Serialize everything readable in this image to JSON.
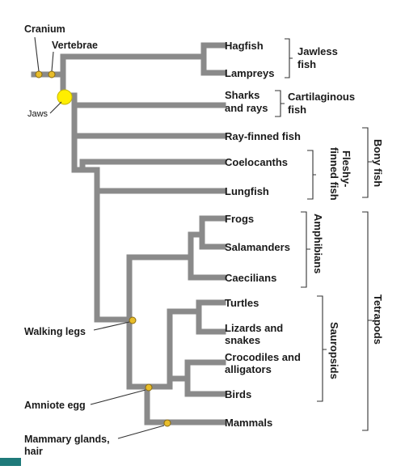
{
  "colors": {
    "branch": "#8a8a8a",
    "node_marker": "#e8bd2a",
    "node_outline": "#8a6a10",
    "jaws_marker": "#ffee00",
    "text": "#1a1a1a",
    "corner_accent": "#1f7a7a"
  },
  "taxa": {
    "hagfish": "Hagfish",
    "lampreys": "Lampreys",
    "sharks_line1": "Sharks",
    "sharks_line2": "and rays",
    "ray_finned": "Ray-finned fish",
    "coelacanths": "Coelocanths",
    "lungfish": "Lungfish",
    "frogs": "Frogs",
    "salamanders": "Salamanders",
    "caecilians": "Caecilians",
    "turtles": "Turtles",
    "lizards_line1": "Lizards and",
    "lizards_line2": "snakes",
    "crocs_line1": "Crocodiles and",
    "crocs_line2": "alligators",
    "birds": "Birds",
    "mammals": "Mammals"
  },
  "groups": {
    "jawless_line1": "Jawless",
    "jawless_line2": "fish",
    "cartilaginous_line1": "Cartilaginous",
    "cartilaginous_line2": "fish",
    "bony": "Bony fish",
    "fleshy_line1": "Fleshy-",
    "fleshy_line2": "finned fish",
    "amphibians": "Amphibians",
    "sauropsids": "Sauropsids",
    "tetrapods": "Tetrapods"
  },
  "traits": {
    "cranium": "Cranium",
    "vertebrae": "Vertebrae",
    "jaws": "Jaws",
    "walking_legs": "Walking legs",
    "amniote_egg": "Amniote egg",
    "mammary_line1": "Mammary glands,",
    "mammary_line2": "hair"
  }
}
